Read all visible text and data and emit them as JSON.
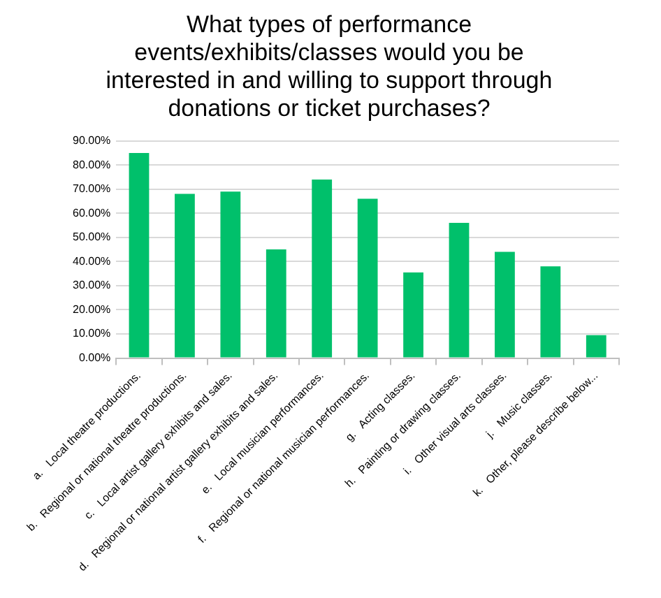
{
  "chart_data": {
    "type": "bar",
    "title": "What types of performance events/exhibits/classes would you be interested in and willing to support through donations or ticket purchases?",
    "categories": [
      "a.   Local theatre productions.",
      "b.   Regional or national theatre productions.",
      "c.   Local artist gallery exhibits and sales.",
      "d.   Regional or national artist gallery exhibits and sales.",
      "e.   Local musician performances.",
      "f.   Regional or national musician performances.",
      "g.   Acting classes.",
      "h.   Painting or drawing classes.",
      "i.   Other visual arts classes.",
      "j.   Music classes.",
      "k.   Other, please describe below..."
    ],
    "values": [
      85,
      68,
      69,
      45,
      74,
      66,
      35.5,
      56,
      44,
      38,
      9.5
    ],
    "color": "#00c06b",
    "ylim": [
      0,
      90
    ],
    "yticks": [
      {
        "value": 0,
        "label": "0.00%"
      },
      {
        "value": 10,
        "label": "10.00%"
      },
      {
        "value": 20,
        "label": "20.00%"
      },
      {
        "value": 30,
        "label": "30.00%"
      },
      {
        "value": 40,
        "label": "40.00%"
      },
      {
        "value": 50,
        "label": "50.00%"
      },
      {
        "value": 60,
        "label": "60.00%"
      },
      {
        "value": 70,
        "label": "70.00%"
      },
      {
        "value": 80,
        "label": "80.00%"
      },
      {
        "value": 90,
        "label": "90.00%"
      }
    ],
    "grid": "y"
  }
}
